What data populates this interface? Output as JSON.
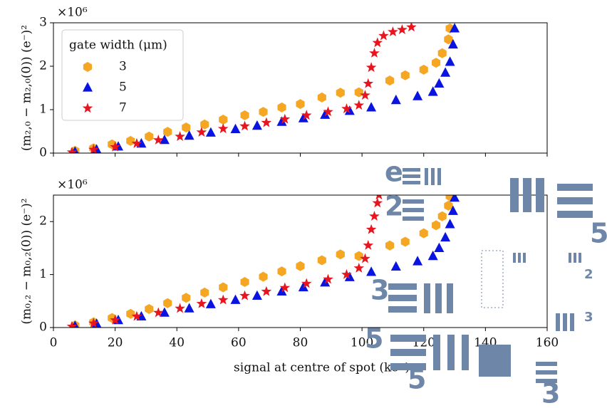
{
  "chart_data": [
    {
      "type": "scatter",
      "offset_text": "×10⁶",
      "ylabel": "(m₂,₀ − m₂,₀(0)) (e⁻)²",
      "xlim": [
        0,
        160
      ],
      "xticks": [
        0,
        20,
        40,
        60,
        80,
        100,
        120,
        140,
        160
      ],
      "ylim": [
        0,
        3
      ],
      "yticks": [
        0,
        1,
        2,
        3
      ],
      "legend": "upper left",
      "legend_title": "gate width (μm)",
      "series": [
        {
          "name": "3",
          "color": "#f5a623",
          "marker": "hexagon",
          "x": [
            7,
            13,
            19,
            25,
            31,
            37,
            43,
            49,
            55,
            62,
            68,
            74,
            80,
            87,
            93,
            99,
            109,
            114,
            120,
            124,
            126,
            128,
            128.5
          ],
          "values": [
            0.05,
            0.11,
            0.2,
            0.28,
            0.38,
            0.49,
            0.59,
            0.66,
            0.77,
            0.87,
            0.95,
            1.05,
            1.13,
            1.28,
            1.39,
            1.4,
            1.67,
            1.79,
            1.92,
            2.08,
            2.3,
            2.62,
            2.87
          ]
        },
        {
          "name": "5",
          "color": "#0a14e0",
          "marker": "triangle",
          "x": [
            7,
            14,
            21,
            28.5,
            36,
            44,
            51,
            59,
            66,
            74,
            81,
            88,
            96,
            103,
            111,
            118,
            123,
            125,
            127,
            128.5,
            129.5,
            130
          ],
          "values": [
            0.03,
            0.08,
            0.15,
            0.22,
            0.3,
            0.4,
            0.47,
            0.55,
            0.63,
            0.72,
            0.8,
            0.88,
            0.97,
            1.05,
            1.22,
            1.31,
            1.41,
            1.6,
            1.85,
            2.1,
            2.5,
            2.87
          ]
        },
        {
          "name": "7",
          "color": "#e8141e",
          "marker": "star",
          "x": [
            6,
            13,
            20,
            27,
            34,
            41,
            48,
            55,
            62,
            69,
            75,
            82,
            89,
            95,
            99,
            101,
            102,
            103,
            104,
            105,
            107,
            110,
            113,
            116
          ],
          "values": [
            0.02,
            0.08,
            0.14,
            0.22,
            0.3,
            0.38,
            0.48,
            0.56,
            0.62,
            0.7,
            0.78,
            0.87,
            0.95,
            1.02,
            1.1,
            1.33,
            1.6,
            1.97,
            2.3,
            2.54,
            2.7,
            2.79,
            2.84,
            2.9
          ]
        }
      ]
    },
    {
      "type": "scatter",
      "offset_text": "×10⁶",
      "ylabel": "(m₀,₂ − m₀,₂(0)) (e⁻)²",
      "xlabel": "signal at centre of spot (ke⁻)",
      "xlim": [
        0,
        160
      ],
      "xticks": [
        0,
        20,
        40,
        60,
        80,
        100,
        120,
        140,
        160
      ],
      "ylim": [
        0,
        2.5
      ],
      "yticks": [
        0,
        1,
        2
      ],
      "series": [
        {
          "color": "#f5a623",
          "marker": "hexagon",
          "x": [
            7,
            13,
            19,
            25,
            31,
            37,
            43,
            49,
            55,
            62,
            68,
            74,
            80,
            87,
            93,
            99,
            109,
            114,
            120,
            124,
            126,
            128,
            128.5
          ],
          "values": [
            0.04,
            0.1,
            0.18,
            0.26,
            0.35,
            0.46,
            0.56,
            0.66,
            0.76,
            0.86,
            0.96,
            1.06,
            1.16,
            1.27,
            1.38,
            1.35,
            1.55,
            1.62,
            1.78,
            1.93,
            2.1,
            2.3,
            2.48
          ]
        },
        {
          "color": "#0a14e0",
          "marker": "triangle",
          "x": [
            7,
            14,
            21,
            28.5,
            36,
            44,
            51,
            59,
            66,
            74,
            81,
            88,
            96,
            103,
            111,
            118,
            123,
            125,
            127,
            128.5,
            129.5,
            130
          ],
          "values": [
            0.03,
            0.07,
            0.14,
            0.21,
            0.28,
            0.36,
            0.44,
            0.52,
            0.6,
            0.68,
            0.76,
            0.85,
            0.95,
            1.05,
            1.15,
            1.25,
            1.35,
            1.5,
            1.7,
            1.95,
            2.2,
            2.45
          ]
        },
        {
          "color": "#e8141e",
          "marker": "star",
          "x": [
            6,
            13,
            20,
            27,
            34,
            41,
            48,
            55,
            62,
            69,
            75,
            82,
            89,
            95,
            99,
            101,
            102,
            103,
            104,
            105,
            105.5
          ],
          "values": [
            0.02,
            0.08,
            0.14,
            0.21,
            0.28,
            0.36,
            0.45,
            0.52,
            0.6,
            0.68,
            0.75,
            0.83,
            0.91,
            1.0,
            1.12,
            1.3,
            1.55,
            1.85,
            2.1,
            2.35,
            2.5
          ]
        }
      ]
    }
  ],
  "overlay": {
    "labels": [
      "e",
      "2",
      "3",
      "5",
      "5",
      "5",
      "3",
      "2",
      "3"
    ]
  }
}
